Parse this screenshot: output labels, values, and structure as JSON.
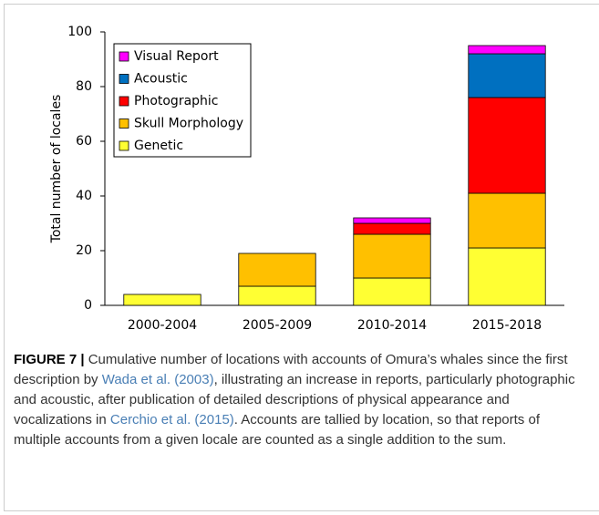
{
  "chart_data": {
    "type": "stacked-bar",
    "y_label": "Total number of locales",
    "categories": [
      "2000-2004",
      "2005-2009",
      "2010-2014",
      "2015-2018"
    ],
    "series": [
      {
        "name": "Genetic",
        "color": "#ffff33",
        "values": [
          4,
          7,
          10,
          21
        ]
      },
      {
        "name": "Skull Morphology",
        "color": "#ffc000",
        "values": [
          0,
          12,
          16,
          20
        ]
      },
      {
        "name": "Photographic",
        "color": "#ff0000",
        "values": [
          0,
          0,
          4,
          35
        ]
      },
      {
        "name": "Acoustic",
        "color": "#0070c0",
        "values": [
          0,
          0,
          0,
          16
        ]
      },
      {
        "name": "Visual Report",
        "color": "#ff00ff",
        "values": [
          0,
          0,
          2,
          3
        ]
      }
    ],
    "ylim": [
      0,
      100
    ],
    "yticks": [
      0,
      20,
      40,
      60,
      80,
      100
    ],
    "grid": false,
    "legend": "upper-left"
  },
  "caption": {
    "label": "FIGURE 7 |",
    "parts": [
      " Cumulative number of locations with accounts of Omura’s whales since the first description by ",
      "Wada et al. (2003)",
      ", illustrating an increase in reports, particularly photographic and acoustic, after publication of detailed descriptions of physical appearance and vocalizations in ",
      "Cerchio et al. (2015)",
      ". Accounts are tallied by location, so that reports of multiple accounts from a given locale are counted as a single addition to the sum."
    ]
  }
}
